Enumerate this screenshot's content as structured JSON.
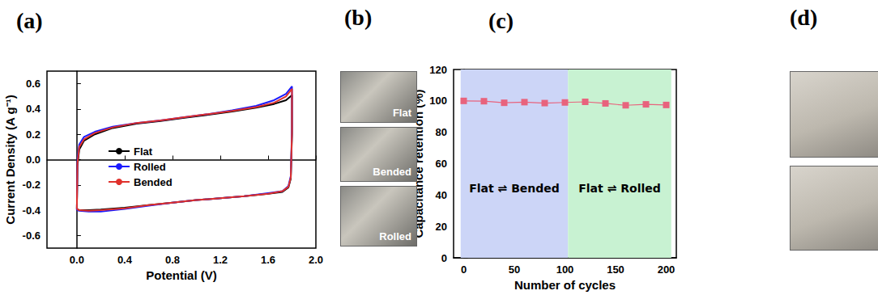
{
  "chart_data": [
    {
      "type": "line",
      "title": "(a)",
      "x_label": "Potential (V)",
      "y_label": "Current Density (A g⁻¹)",
      "xlim": [
        -0.25,
        2.0
      ],
      "xticks": [
        {
          "value": 0,
          "label": "0.0"
        },
        0.4,
        0.8,
        1.2,
        1.6,
        {
          "value": 2,
          "label": "2.0"
        }
      ],
      "ylim": [
        -0.7,
        0.7
      ],
      "yticks": [
        -0.6,
        -0.4,
        -0.2,
        {
          "value": 0,
          "label": "0.0"
        },
        0.2,
        0.4,
        0.6
      ],
      "grid": false,
      "legend": "center left",
      "series": [
        {
          "name": "Flat",
          "color": "#000000",
          "line_style": "solid",
          "x": [
            0,
            0.005,
            0.02,
            0.06,
            0.15,
            0.3,
            0.5,
            0.7,
            0.9,
            1.1,
            1.3,
            1.5,
            1.65,
            1.75,
            1.8,
            1.8,
            1.79,
            1.77,
            1.72,
            1.6,
            1.4,
            1.2,
            1.0,
            0.8,
            0.6,
            0.4,
            0.2,
            0.1,
            0.02,
            0
          ],
          "values": [
            -0.39,
            -0.05,
            0.08,
            0.15,
            0.2,
            0.25,
            0.285,
            0.305,
            0.33,
            0.355,
            0.38,
            0.41,
            0.44,
            0.47,
            0.51,
            0.2,
            -0.15,
            -0.22,
            -0.255,
            -0.27,
            -0.29,
            -0.305,
            -0.32,
            -0.34,
            -0.36,
            -0.38,
            -0.395,
            -0.4,
            -0.4,
            -0.39
          ]
        },
        {
          "name": "Rolled",
          "color": "#1a1aff",
          "line_style": "solid",
          "x": [
            0,
            0.005,
            0.02,
            0.06,
            0.15,
            0.3,
            0.5,
            0.7,
            0.9,
            1.1,
            1.3,
            1.5,
            1.65,
            1.75,
            1.8,
            1.8,
            1.79,
            1.77,
            1.72,
            1.6,
            1.4,
            1.2,
            1.0,
            0.8,
            0.6,
            0.4,
            0.2,
            0.1,
            0.02,
            0
          ],
          "values": [
            -0.4,
            0.0,
            0.12,
            0.18,
            0.22,
            0.26,
            0.29,
            0.31,
            0.335,
            0.36,
            0.39,
            0.425,
            0.47,
            0.52,
            0.58,
            0.25,
            -0.13,
            -0.21,
            -0.25,
            -0.265,
            -0.29,
            -0.305,
            -0.32,
            -0.34,
            -0.365,
            -0.39,
            -0.41,
            -0.41,
            -0.405,
            -0.4
          ]
        },
        {
          "name": "Bended",
          "color": "#e0312c",
          "line_style": "solid",
          "x": [
            0,
            0.005,
            0.02,
            0.06,
            0.15,
            0.3,
            0.5,
            0.7,
            0.9,
            1.1,
            1.3,
            1.5,
            1.65,
            1.75,
            1.8,
            1.8,
            1.79,
            1.77,
            1.72,
            1.6,
            1.4,
            1.2,
            1.0,
            0.8,
            0.6,
            0.4,
            0.2,
            0.1,
            0.02,
            0
          ],
          "values": [
            -0.39,
            -0.03,
            0.1,
            0.16,
            0.21,
            0.255,
            0.29,
            0.31,
            0.335,
            0.36,
            0.385,
            0.415,
            0.45,
            0.5,
            0.56,
            0.22,
            -0.14,
            -0.215,
            -0.25,
            -0.27,
            -0.29,
            -0.305,
            -0.32,
            -0.34,
            -0.36,
            -0.385,
            -0.4,
            -0.405,
            -0.4,
            -0.39
          ]
        }
      ]
    },
    {
      "type": "line",
      "title": "(c)",
      "x_label": "Number of cycles",
      "y_label": "Capacitance retention (%)",
      "xlim": [
        -10,
        210
      ],
      "xticks": [
        0,
        50,
        100,
        150,
        200
      ],
      "ylim": [
        0,
        120
      ],
      "yticks": [
        0,
        20,
        40,
        60,
        80,
        100,
        120
      ],
      "grid": false,
      "series": [
        {
          "color": "#e8637d",
          "marker": "square",
          "line_style": "solid",
          "x": [
            0,
            20,
            40,
            60,
            80,
            100,
            120,
            140,
            160,
            180,
            200
          ],
          "values": [
            100,
            99.8,
            98.8,
            99.2,
            98.6,
            99.0,
            99.4,
            98.4,
            97.2,
            97.8,
            97.4
          ]
        }
      ],
      "regions": [
        {
          "label": "Flat ⇌ Bended",
          "range": [
            -3,
            103
          ],
          "color": "#ccd5f7"
        },
        {
          "label": "Flat ⇌ Rolled",
          "range": [
            103,
            205
          ],
          "color": "#c8f2d2"
        }
      ]
    }
  ],
  "photos": [
    {
      "label": "(b)",
      "captions": [
        "Flat",
        "Bended",
        "Rolled"
      ]
    },
    {
      "label": "(d)",
      "count": 2
    }
  ]
}
